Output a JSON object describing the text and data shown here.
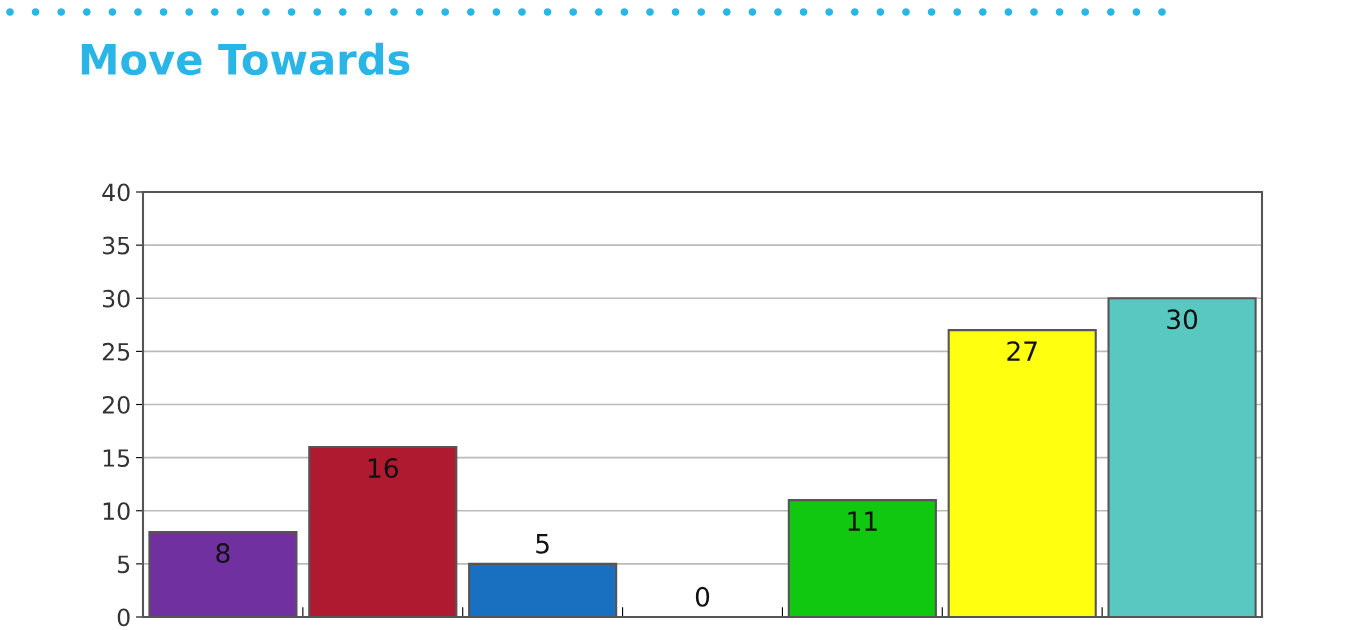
{
  "chart_data": {
    "type": "bar",
    "title": "Move Towards",
    "categories": [
      null,
      null,
      null,
      null,
      null,
      null,
      null
    ],
    "values": [
      8,
      16,
      5,
      0,
      11,
      27,
      30
    ],
    "colors": [
      "#7030a0",
      "#b01a30",
      "#1a70c0",
      "#ffffff",
      "#10c810",
      "#ffff10",
      "#58c8c0"
    ],
    "ylim": [
      0,
      40
    ],
    "yticks": [
      0,
      5,
      10,
      15,
      20,
      25,
      30,
      35,
      40
    ],
    "grid": "y",
    "data_labels": true
  }
}
